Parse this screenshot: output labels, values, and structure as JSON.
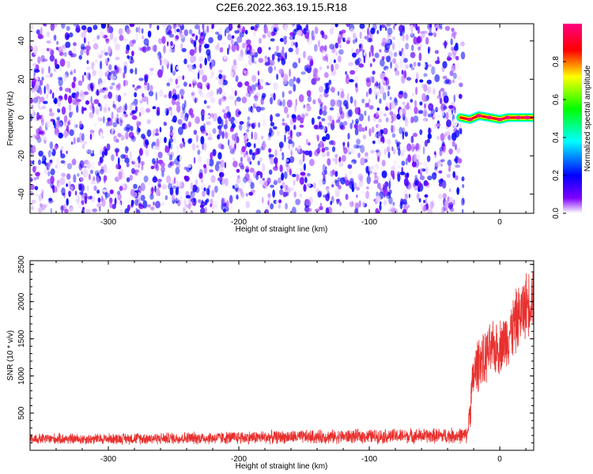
{
  "title": "C2E6.2022.363.19.15.R18",
  "chart_data": [
    {
      "type": "heatmap",
      "title": "",
      "xlabel": "Height of straight line (km)",
      "ylabel": "Frequency (Hz)",
      "xlim": [
        -360,
        26
      ],
      "ylim": [
        -50,
        49
      ],
      "x_ticks": [
        -300,
        -200,
        -100,
        0
      ],
      "y_ticks": [
        -40,
        -20,
        0,
        20,
        40
      ],
      "noise_region": {
        "x_range": [
          -360,
          -28
        ],
        "y_range": [
          -50,
          49
        ],
        "typical_amplitude": 0.25
      },
      "signal_band": {
        "x_range": [
          -30,
          26
        ],
        "center_frequency": 0,
        "half_width_hz": 2,
        "peak_amplitude": 0.95,
        "peaks": [
          {
            "x": -23,
            "y": -1
          },
          {
            "x": -16,
            "y": 1
          },
          {
            "x": -8,
            "y": 0
          },
          {
            "x": 0,
            "y": -1
          },
          {
            "x": 6,
            "y": 0
          },
          {
            "x": 14,
            "y": 0
          },
          {
            "x": 21,
            "y": 0
          }
        ]
      },
      "colorbar": {
        "label": "Normalized spectral amplitude",
        "range": [
          0,
          1
        ],
        "ticks": [
          0.0,
          0.2,
          0.4,
          0.6,
          0.8
        ],
        "tick_labels": [
          "0.0",
          "0.2",
          "0.4",
          "0.6",
          "0.8"
        ],
        "colors": [
          "#ffffff",
          "#7f00ff",
          "#0000ff",
          "#00ffff",
          "#00ff00",
          "#ffff00",
          "#ff0000",
          "#ff0080"
        ]
      },
      "grid": false
    },
    {
      "type": "line",
      "title": "",
      "xlabel": "Height of straight line (km)",
      "ylabel": "SNR (10 * v/v)",
      "xlim": [
        -360,
        26
      ],
      "ylim": [
        0,
        2550
      ],
      "x_ticks": [
        -300,
        -200,
        -100,
        0
      ],
      "y_ticks": [
        500,
        1000,
        1500,
        2000,
        2500
      ],
      "series": [
        {
          "color": "#e8302e",
          "x": [
            -360,
            -340,
            -320,
            -300,
            -280,
            -260,
            -240,
            -220,
            -200,
            -180,
            -160,
            -140,
            -120,
            -100,
            -80,
            -60,
            -40,
            -25,
            -22,
            -20,
            -15,
            -12,
            -10,
            -5,
            0,
            5,
            10,
            15,
            20,
            26
          ],
          "y": [
            150,
            155,
            150,
            155,
            160,
            160,
            165,
            165,
            170,
            175,
            180,
            180,
            185,
            190,
            190,
            195,
            195,
            200,
            700,
            1000,
            1250,
            1150,
            1300,
            1350,
            1400,
            1500,
            1650,
            1800,
            1950,
            2100
          ],
          "noise_amplitude": [
            70,
            70,
            70,
            70,
            75,
            75,
            80,
            80,
            85,
            85,
            85,
            90,
            90,
            90,
            95,
            95,
            100,
            100,
            300,
            350,
            350,
            350,
            350,
            350,
            350,
            380,
            400,
            420,
            420,
            420
          ]
        }
      ],
      "grid": false
    }
  ]
}
